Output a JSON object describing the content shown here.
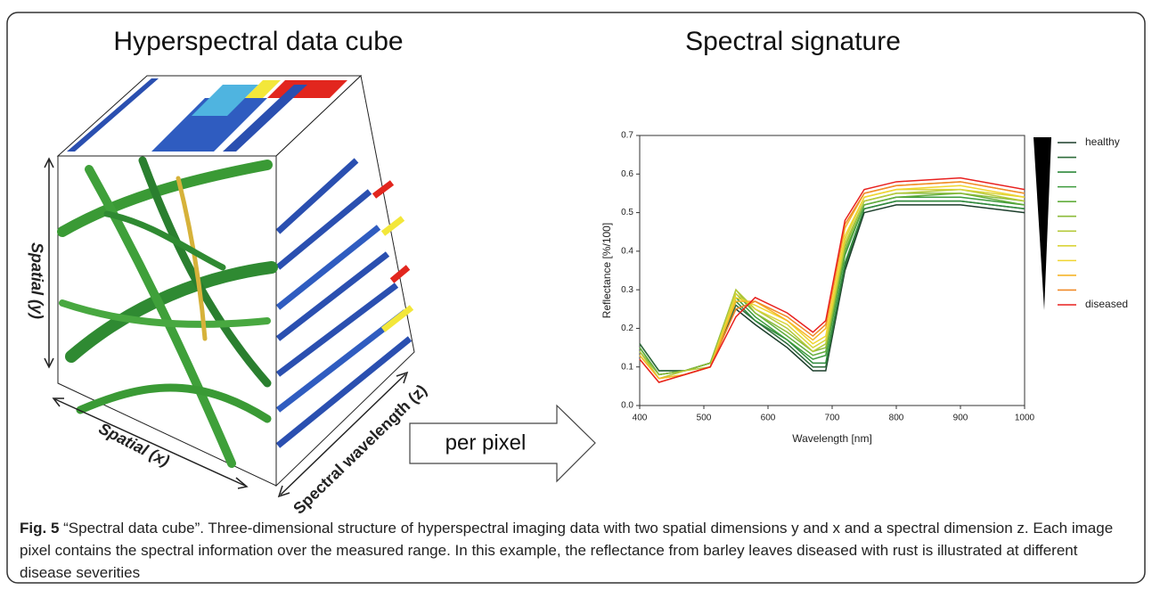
{
  "left_title": "Hyperspectral data cube",
  "cube_labels": {
    "y": "Spatial (y)",
    "x": "Spatial (x)",
    "z": "Spectral wavelength (z)"
  },
  "arrow_label": "per pixel",
  "right_title": "Spectral signature",
  "chart_data": {
    "type": "line",
    "x_label": "Wavelength [nm]",
    "y_label": "Reflectance [%/100]",
    "x": [
      400,
      430,
      470,
      510,
      550,
      580,
      630,
      670,
      690,
      720,
      750,
      800,
      900,
      1000
    ],
    "xlim": [
      400,
      1000
    ],
    "xticks": [
      400,
      500,
      600,
      700,
      800,
      900,
      1000
    ],
    "ylim": [
      0,
      0.7
    ],
    "yticks": [
      {
        "value": 0,
        "label": "0.0"
      },
      0.1,
      0.2,
      0.3,
      0.4,
      0.5,
      0.6,
      0.7
    ],
    "series": [
      {
        "name": "healthy",
        "color": "#1b3d2a",
        "values": [
          0.16,
          0.09,
          0.09,
          0.11,
          0.25,
          0.21,
          0.15,
          0.09,
          0.09,
          0.35,
          0.5,
          0.52,
          0.52,
          0.5
        ]
      },
      {
        "color": "#2e6b3a",
        "values": [
          0.16,
          0.09,
          0.09,
          0.11,
          0.26,
          0.22,
          0.16,
          0.1,
          0.1,
          0.36,
          0.51,
          0.53,
          0.53,
          0.51
        ]
      },
      {
        "color": "#2f8a3c",
        "values": [
          0.15,
          0.08,
          0.09,
          0.11,
          0.27,
          0.22,
          0.17,
          0.11,
          0.11,
          0.37,
          0.51,
          0.53,
          0.53,
          0.51
        ]
      },
      {
        "color": "#3e9b3c",
        "values": [
          0.15,
          0.08,
          0.09,
          0.11,
          0.28,
          0.23,
          0.17,
          0.12,
          0.13,
          0.39,
          0.52,
          0.54,
          0.54,
          0.52
        ]
      },
      {
        "color": "#62ad3c",
        "values": [
          0.15,
          0.08,
          0.09,
          0.11,
          0.29,
          0.24,
          0.18,
          0.13,
          0.14,
          0.4,
          0.52,
          0.54,
          0.55,
          0.52
        ]
      },
      {
        "color": "#8bbb3a",
        "values": [
          0.14,
          0.08,
          0.09,
          0.11,
          0.3,
          0.24,
          0.19,
          0.14,
          0.15,
          0.41,
          0.53,
          0.55,
          0.55,
          0.53
        ]
      },
      {
        "color": "#b5c93a",
        "values": [
          0.14,
          0.07,
          0.09,
          0.1,
          0.3,
          0.25,
          0.2,
          0.14,
          0.16,
          0.42,
          0.53,
          0.55,
          0.56,
          0.53
        ]
      },
      {
        "color": "#d9d43a",
        "values": [
          0.13,
          0.07,
          0.08,
          0.1,
          0.29,
          0.25,
          0.21,
          0.15,
          0.17,
          0.43,
          0.54,
          0.56,
          0.56,
          0.54
        ]
      },
      {
        "color": "#f0d530",
        "values": [
          0.13,
          0.07,
          0.08,
          0.1,
          0.28,
          0.26,
          0.22,
          0.16,
          0.18,
          0.44,
          0.54,
          0.56,
          0.57,
          0.54
        ]
      },
      {
        "color": "#f5b52a",
        "values": [
          0.13,
          0.07,
          0.08,
          0.1,
          0.27,
          0.27,
          0.22,
          0.17,
          0.2,
          0.46,
          0.55,
          0.57,
          0.58,
          0.55
        ]
      },
      {
        "color": "#f08a28",
        "values": [
          0.12,
          0.06,
          0.08,
          0.1,
          0.25,
          0.27,
          0.23,
          0.18,
          0.21,
          0.47,
          0.55,
          0.57,
          0.58,
          0.55
        ]
      },
      {
        "name": "diseased",
        "color": "#e8211f",
        "values": [
          0.12,
          0.06,
          0.08,
          0.1,
          0.23,
          0.28,
          0.24,
          0.19,
          0.22,
          0.48,
          0.56,
          0.58,
          0.59,
          0.56
        ]
      }
    ]
  },
  "caption": {
    "label": "Fig. 5",
    "text": "“Spectral data cube”. Three-dimensional structure of hyperspectral imaging data with two spatial dimensions y and x and a spectral dimension z. Each image pixel contains the spectral information over the measured range. In this example, the reflectance from barley leaves diseased with rust is illustrated at different disease severities"
  }
}
